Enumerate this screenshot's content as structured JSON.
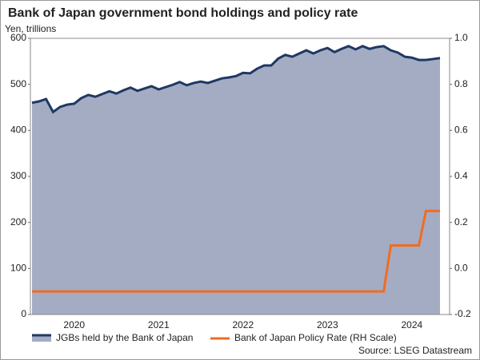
{
  "chart_data": {
    "type": "line",
    "title": "Bank of Japan government bond holdings and policy rate",
    "y_label": "Yen, trillions",
    "source": "Source: LSEG Datastream",
    "categories": [
      null,
      null,
      null,
      null,
      null,
      null,
      "2020",
      null,
      null,
      null,
      null,
      null,
      null,
      null,
      null,
      null,
      null,
      null,
      "2021",
      null,
      null,
      null,
      null,
      null,
      null,
      null,
      null,
      null,
      null,
      null,
      "2022",
      null,
      null,
      null,
      null,
      null,
      null,
      null,
      null,
      null,
      null,
      null,
      "2023",
      null,
      null,
      null,
      null,
      null,
      null,
      null,
      null,
      null,
      null,
      null,
      "2024",
      null,
      null,
      null,
      null
    ],
    "series": [
      {
        "name": "JGBs held by the Bank of Japan",
        "color": "#1f3864",
        "fill": "#a3acc3",
        "kind": "area",
        "values": [
          460,
          463,
          468,
          440,
          451,
          456,
          458,
          470,
          477,
          473,
          479,
          485,
          480,
          487,
          493,
          486,
          491,
          496,
          489,
          494,
          499,
          505,
          498,
          503,
          506,
          503,
          508,
          513,
          515,
          518,
          525,
          524,
          534,
          541,
          541,
          556,
          564,
          560,
          567,
          574,
          567,
          574,
          579,
          570,
          577,
          583,
          576,
          583,
          577,
          581,
          583,
          574,
          569,
          560,
          558,
          553,
          553,
          555,
          557
        ]
      },
      {
        "name": "Bank of Japan Policy Rate (RH Scale)",
        "color": "#f26b21",
        "kind": "line",
        "axis": "y2",
        "values": [
          -0.1,
          -0.1,
          -0.1,
          -0.1,
          -0.1,
          -0.1,
          -0.1,
          -0.1,
          -0.1,
          -0.1,
          -0.1,
          -0.1,
          -0.1,
          -0.1,
          -0.1,
          -0.1,
          -0.1,
          -0.1,
          -0.1,
          -0.1,
          -0.1,
          -0.1,
          -0.1,
          -0.1,
          -0.1,
          -0.1,
          -0.1,
          -0.1,
          -0.1,
          -0.1,
          -0.1,
          -0.1,
          -0.1,
          -0.1,
          -0.1,
          -0.1,
          -0.1,
          -0.1,
          -0.1,
          -0.1,
          -0.1,
          -0.1,
          -0.1,
          -0.1,
          -0.1,
          -0.1,
          -0.1,
          -0.1,
          -0.1,
          -0.1,
          -0.1,
          0.1,
          0.1,
          0.1,
          0.1,
          0.1,
          0.25,
          0.25,
          0.25
        ]
      }
    ],
    "ylim": [
      0,
      600
    ],
    "yticks": [
      0,
      100,
      200,
      300,
      400,
      500,
      600
    ],
    "y2lim": [
      -0.2,
      1.0
    ],
    "y2ticks": [
      -0.2,
      {
        "value": 0,
        "label": "0.0"
      },
      0.2,
      0.4,
      0.6,
      0.8,
      {
        "value": 1,
        "label": "1.0"
      }
    ]
  }
}
